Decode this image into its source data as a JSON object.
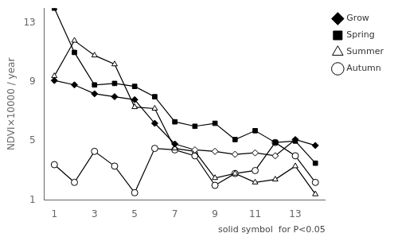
{
  "chart_data": {
    "type": "line",
    "x": [
      1,
      2,
      3,
      4,
      5,
      6,
      7,
      8,
      9,
      10,
      11,
      12,
      13,
      14
    ],
    "series": [
      {
        "name": "Grow",
        "color": "#000000",
        "marker": "diamond",
        "values": [
          9.1,
          8.8,
          8.2,
          8.0,
          7.8,
          6.2,
          4.8,
          4.4,
          4.3,
          4.1,
          4.2,
          4.0,
          5.1,
          4.7
        ],
        "solid": [
          true,
          true,
          true,
          true,
          true,
          true,
          true,
          false,
          false,
          false,
          false,
          false,
          true,
          true
        ]
      },
      {
        "name": "Spring",
        "color": "#000000",
        "marker": "square",
        "values": [
          14.0,
          11.0,
          8.8,
          8.9,
          8.7,
          8.0,
          6.3,
          6.0,
          6.2,
          5.1,
          5.7,
          4.9,
          5.0,
          3.5
        ],
        "solid": [
          true,
          true,
          true,
          true,
          true,
          true,
          true,
          true,
          true,
          true,
          true,
          true,
          true,
          true
        ]
      },
      {
        "name": "Summer",
        "color": "#000000",
        "marker": "triangle",
        "values": [
          9.4,
          11.8,
          10.8,
          10.2,
          7.3,
          7.2,
          4.5,
          4.3,
          2.5,
          2.8,
          2.2,
          2.4,
          3.3,
          1.4
        ],
        "solid": [
          false,
          false,
          false,
          false,
          false,
          false,
          false,
          false,
          false,
          false,
          false,
          false,
          false,
          false
        ]
      },
      {
        "name": "Autumn",
        "color": "#000000",
        "marker": "circle",
        "values": [
          3.4,
          2.2,
          4.3,
          3.3,
          1.5,
          4.5,
          4.4,
          4.0,
          2.0,
          2.8,
          3.0,
          4.9,
          4.0,
          2.2
        ],
        "solid": [
          false,
          false,
          false,
          false,
          false,
          false,
          false,
          false,
          false,
          false,
          false,
          false,
          false,
          false
        ]
      }
    ],
    "ylabel": "NDVI×10000 / year",
    "annotation": "solid symbol  for P<0.05",
    "xlim": [
      0.5,
      14.5
    ],
    "xticks": [
      1,
      3,
      5,
      7,
      9,
      11,
      13
    ],
    "ylim": [
      1,
      14
    ],
    "yticks": [
      1,
      5,
      9,
      13
    ],
    "grid": false,
    "legend": "right"
  }
}
